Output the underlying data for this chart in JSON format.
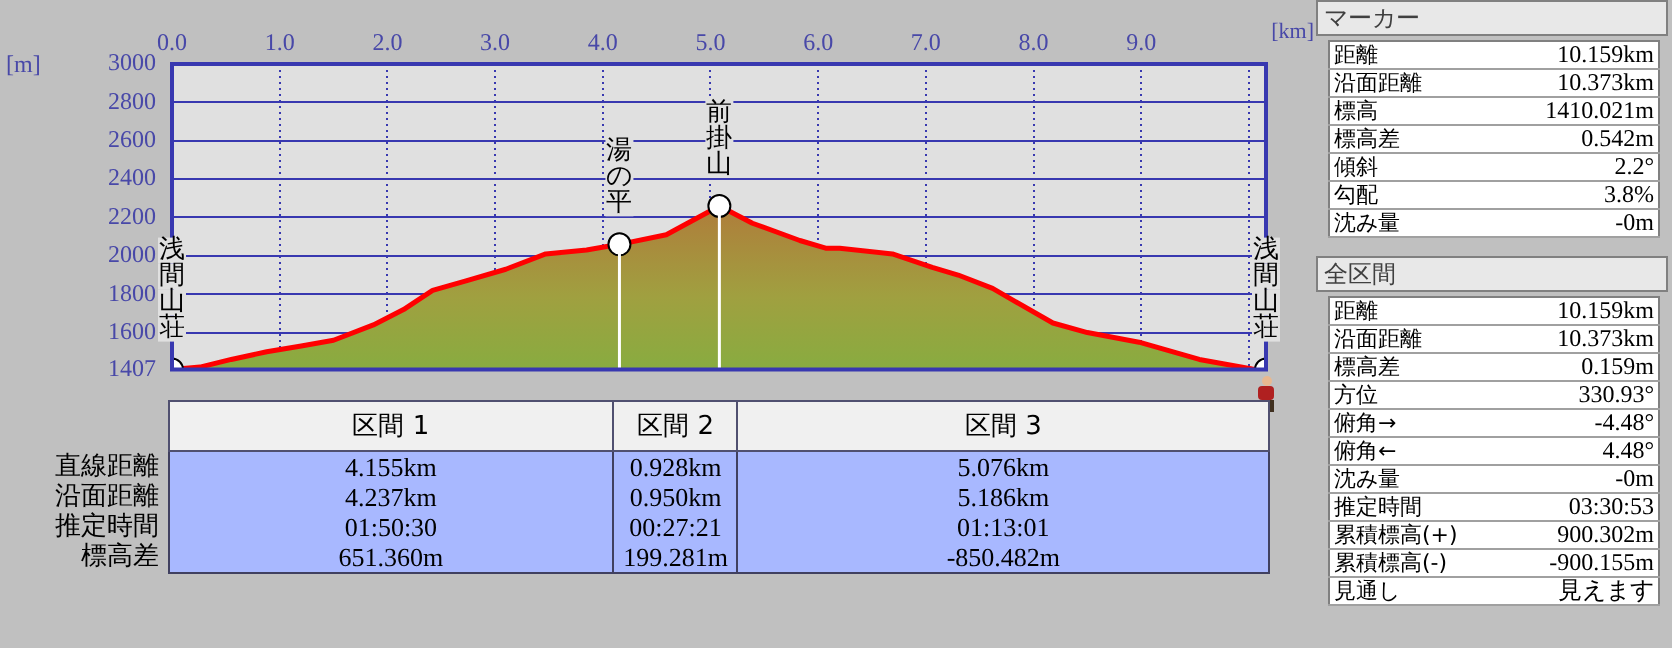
{
  "chart_data": [
    {
      "type": "area",
      "xlabel": "[km]",
      "ylabel": "[m]",
      "xlim": [
        0,
        10.159
      ],
      "ylim": [
        1407,
        3000
      ],
      "xticks": [
        {
          "value": 0,
          "label": "0.0"
        },
        {
          "value": 1,
          "label": "1.0"
        },
        {
          "value": 2,
          "label": "2.0"
        },
        {
          "value": 3,
          "label": "3.0"
        },
        {
          "value": 4,
          "label": "4.0"
        },
        {
          "value": 5,
          "label": "5.0"
        },
        {
          "value": 6,
          "label": "6.0"
        },
        {
          "value": 7,
          "label": "7.0"
        },
        {
          "value": 8,
          "label": "8.0"
        },
        {
          "value": 9,
          "label": "9.0"
        },
        {
          "value": 10,
          "label": null
        }
      ],
      "yticks": [
        1407,
        1600,
        1800,
        2000,
        2200,
        2400,
        2600,
        2800,
        3000
      ],
      "grid": true,
      "legend": false,
      "x": [
        0,
        0.26,
        0.55,
        0.88,
        1.2,
        1.5,
        1.87,
        2.15,
        2.42,
        2.73,
        3.1,
        3.47,
        3.85,
        4.155,
        4.59,
        5.083,
        5.39,
        5.83,
        6.07,
        6.2,
        6.69,
        7.06,
        7.3,
        7.62,
        8.18,
        8.5,
        8.98,
        9.54,
        10.03,
        10.159
      ],
      "series": [
        {
          "color": "#ff0000",
          "values": [
            1407,
            1420,
            1460,
            1500,
            1530,
            1560,
            1640,
            1720,
            1820,
            1870,
            1930,
            2010,
            2030,
            2060,
            2110,
            2260,
            2170,
            2080,
            2040,
            2040,
            2010,
            1940,
            1900,
            1830,
            1650,
            1600,
            1550,
            1460,
            1410,
            1407
          ]
        },
        {
          "type": "scatter",
          "color": "#ffffff",
          "x": [
            0,
            4.155,
            5.083,
            10.159
          ],
          "values": [
            1407,
            2060,
            2260,
            1407
          ]
        }
      ],
      "ref_lines": [
        {
          "axis": "x",
          "value": 4.155,
          "color": "#ffffff"
        },
        {
          "axis": "x",
          "value": 5.083,
          "color": "#ffffff"
        }
      ],
      "annotations": [
        {
          "text": "浅間山荘",
          "x": 0,
          "y": 1407
        },
        {
          "text": "湯の平",
          "x": 4.155,
          "y": 2060
        },
        {
          "text": "前掛山",
          "x": 5.083,
          "y": 2260
        },
        {
          "text": "浅間山荘",
          "x": 10.159,
          "y": 1407
        }
      ]
    },
    {
      "type": "other",
      "categories": [
        "区間 1",
        "区間 2",
        "区間 3"
      ],
      "y_categories": [
        "直線距離",
        "沿面距離",
        "推定時間",
        "標高差"
      ],
      "annotations": [
        "4.155km",
        "0.928km",
        "5.076km",
        "4.237km",
        "0.950km",
        "5.186km",
        "01:50:30",
        "00:27:21",
        "01:13:01",
        "651.360m",
        "199.281m",
        "-850.482m"
      ]
    },
    {
      "type": "other",
      "title": "マーカー",
      "y_categories": [
        "距離",
        "沿面距離",
        "標高",
        "標高差",
        "傾斜",
        "勾配",
        "沈み量"
      ],
      "annotations": [
        "10.159km",
        "10.373km",
        "1410.021m",
        "0.542m",
        "2.2°",
        "3.8%",
        "-0m"
      ]
    },
    {
      "type": "other",
      "title": "全区間",
      "y_categories": [
        "距離",
        "沿面距離",
        "標高差",
        "方位",
        "俯角→",
        "俯角←",
        "沈み量",
        "推定時間",
        "累積標高(+)",
        "累積標高(-)",
        "見通し"
      ],
      "annotations": [
        "10.159km",
        "10.373km",
        "0.159m",
        "330.93°",
        "-4.48°",
        "4.48°",
        "-0m",
        "03:30:53",
        "900.302m",
        "-900.155m",
        "見えます"
      ]
    }
  ]
}
